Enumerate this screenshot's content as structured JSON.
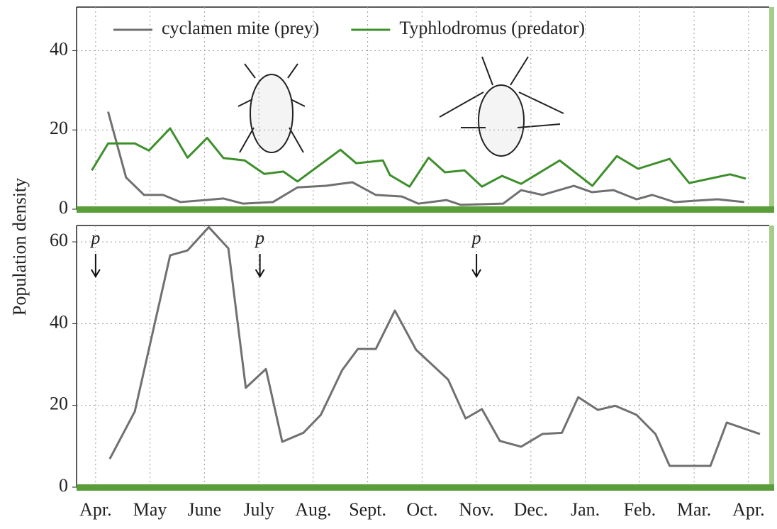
{
  "chart_data": [
    {
      "type": "line",
      "ylabel": "Population density",
      "xlim": [
        -0.35,
        12.38
      ],
      "xticks": [
        0,
        1,
        2,
        3,
        4,
        5,
        6,
        7,
        8,
        9,
        10,
        11,
        12
      ],
      "ylim": [
        0,
        51
      ],
      "yticks": [
        0,
        20,
        40
      ],
      "grid": true,
      "legend": "top",
      "series": [
        {
          "name": "cyclamen mite (prey)",
          "color": "#707070",
          "x": [
            0.23,
            0.56,
            0.89,
            1.24,
            1.56,
            2.02,
            2.35,
            2.71,
            3.26,
            3.71,
            4.23,
            4.72,
            5.15,
            5.63,
            5.93,
            6.45,
            6.71,
            7.49,
            7.82,
            8.21,
            8.79,
            9.12,
            9.52,
            9.94,
            10.23,
            10.64,
            11.43,
            11.92
          ],
          "values": [
            24.6,
            8,
            3.6,
            3.6,
            1.8,
            2.3,
            2.7,
            1.4,
            1.8,
            5.5,
            5.9,
            6.8,
            3.6,
            3.2,
            1.4,
            2.3,
            1.1,
            1.4,
            4.8,
            3.6,
            5.9,
            4.3,
            4.8,
            2.5,
            3.6,
            1.8,
            2.5,
            1.8
          ]
        },
        {
          "name": "Typhlodromus (predator)",
          "color": "#3d8f2b",
          "x": [
            -0.07,
            0.23,
            0.72,
            0.98,
            1.37,
            1.69,
            2.05,
            2.35,
            2.74,
            3.1,
            3.45,
            3.71,
            4.5,
            4.79,
            5.28,
            5.41,
            5.77,
            6.12,
            6.42,
            6.78,
            7.1,
            7.47,
            7.82,
            8.53,
            9.13,
            9.58,
            9.97,
            10.55,
            10.91,
            11.66,
            11.95
          ],
          "values": [
            9.8,
            16.6,
            16.6,
            14.8,
            20.4,
            13,
            18,
            12.9,
            12.3,
            8.9,
            9.5,
            7,
            15,
            11.6,
            12.3,
            8.6,
            5.7,
            13,
            9.3,
            9.8,
            5.7,
            8.4,
            6.4,
            12.3,
            5.9,
            13.4,
            10.2,
            12.7,
            6.6,
            8.8,
            7.7
          ]
        }
      ]
    },
    {
      "type": "line",
      "xlim": [
        -0.35,
        12.38
      ],
      "xticks": [
        {
          "value": 0,
          "label": "Apr."
        },
        {
          "value": 1,
          "label": "May"
        },
        {
          "value": 2,
          "label": "June"
        },
        {
          "value": 3,
          "label": "July"
        },
        {
          "value": 4,
          "label": "Aug."
        },
        {
          "value": 5,
          "label": "Sept."
        },
        {
          "value": 6,
          "label": "Oct."
        },
        {
          "value": 7,
          "label": "Nov."
        },
        {
          "value": 8,
          "label": "Dec."
        },
        {
          "value": 9,
          "label": "Jan."
        },
        {
          "value": 10,
          "label": "Feb."
        },
        {
          "value": 11,
          "label": "Mar."
        },
        {
          "value": 12,
          "label": "Apr."
        }
      ],
      "ylim": [
        0,
        64
      ],
      "yticks": [
        0,
        20,
        40,
        60
      ],
      "grid": true,
      "annotations": [
        {
          "text": "p",
          "x": 0
        },
        {
          "text": "p",
          "x": 3.02
        },
        {
          "text": "p",
          "x": 7
        }
      ],
      "series": [
        {
          "name": "cyclamen mite (prey)",
          "color": "#707070",
          "x": [
            0.26,
            0.72,
            1.37,
            1.69,
            2.08,
            2.44,
            2.76,
            3.13,
            3.43,
            3.82,
            4.14,
            4.53,
            4.82,
            5.15,
            5.5,
            5.89,
            6.48,
            6.8,
            7.1,
            7.43,
            7.82,
            8.21,
            8.57,
            8.87,
            9.23,
            9.55,
            9.94,
            10.29,
            10.55,
            11.3,
            11.6,
            12.21
          ],
          "values": [
            6.9,
            18.5,
            56.7,
            57.9,
            63.6,
            58.4,
            24.3,
            28.9,
            11.1,
            13.3,
            17.7,
            28.6,
            33.8,
            33.8,
            43.2,
            33.6,
            26.3,
            16.8,
            19.1,
            11.3,
            9.9,
            13,
            13.3,
            22,
            18.9,
            19.9,
            17.7,
            13,
            5.2,
            5.2,
            15.8,
            13
          ]
        }
      ]
    }
  ]
}
